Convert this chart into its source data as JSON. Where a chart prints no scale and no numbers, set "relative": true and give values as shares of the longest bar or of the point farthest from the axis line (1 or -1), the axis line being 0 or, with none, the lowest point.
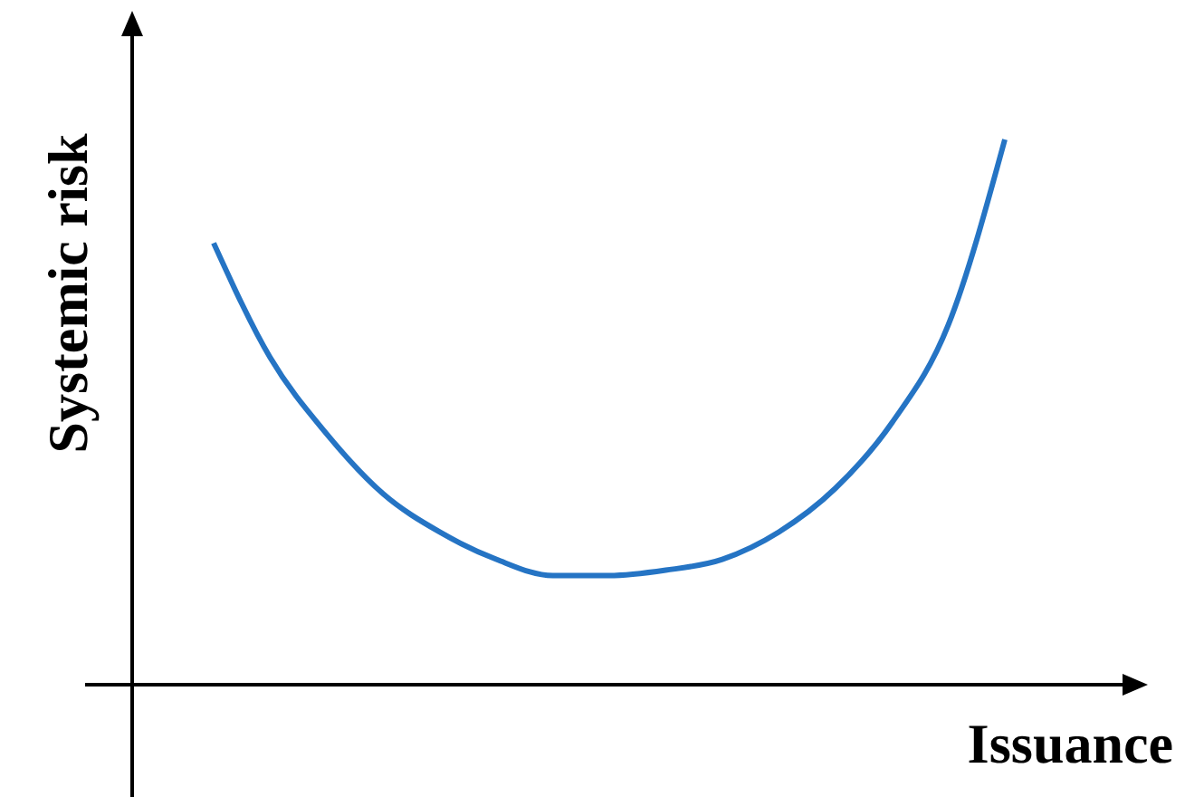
{
  "chart_data": {
    "type": "line",
    "relative": true,
    "xlabel": "Issuance",
    "ylabel": "Systemic risk",
    "color": "#2574c4",
    "categories": [
      null,
      null,
      null,
      null,
      null,
      null,
      null,
      null,
      null,
      null,
      null,
      null,
      null,
      null,
      null
    ],
    "values": [
      0.81,
      0.6,
      0.46,
      0.35,
      0.28,
      0.23,
      0.2,
      0.2,
      0.21,
      0.23,
      0.28,
      0.36,
      0.48,
      0.66,
      1
    ]
  }
}
